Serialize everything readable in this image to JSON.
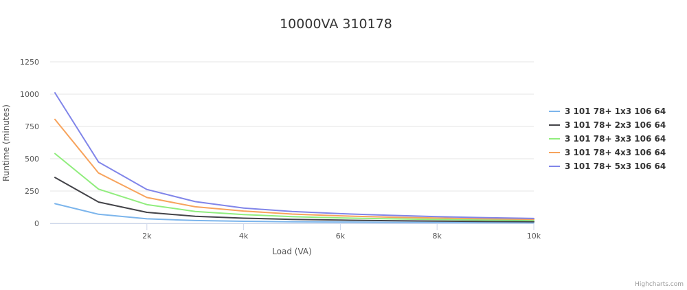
{
  "chart_data": {
    "type": "line",
    "title": "10000VA 310178",
    "xlabel": "Load (VA)",
    "ylabel": "Runtime (minutes)",
    "xlim": [
      0,
      10000
    ],
    "ylim": [
      0,
      1250
    ],
    "x_ticks": [
      2000,
      4000,
      6000,
      8000,
      10000
    ],
    "x_tick_labels": [
      "2k",
      "4k",
      "6k",
      "8k",
      "10k"
    ],
    "y_ticks": [
      0,
      250,
      500,
      750,
      1000,
      1250
    ],
    "y_tick_labels": [
      "0",
      "250",
      "500",
      "750",
      "1000",
      "1250"
    ],
    "grid": "horizontal",
    "legend_position": "right",
    "x": [
      100,
      1000,
      2000,
      3000,
      4000,
      5000,
      6000,
      7000,
      8000,
      9000,
      10000
    ],
    "series": [
      {
        "name": "3 101 78+ 1x3 106 64",
        "color": "#7cb5ec",
        "values": [
          152,
          70,
          35,
          22,
          16,
          12,
          10,
          8,
          7,
          6,
          5
        ]
      },
      {
        "name": "3 101 78+ 2x3 106 64",
        "color": "#434348",
        "values": [
          355,
          165,
          85,
          55,
          40,
          31,
          25,
          21,
          17,
          15,
          13
        ]
      },
      {
        "name": "3 101 78+ 3x3 106 64",
        "color": "#90ed7d",
        "values": [
          540,
          265,
          145,
          92,
          68,
          52,
          42,
          35,
          30,
          26,
          23
        ]
      },
      {
        "name": "3 101 78+ 4x3 106 64",
        "color": "#f7a35c",
        "values": [
          805,
          390,
          200,
          128,
          95,
          72,
          58,
          48,
          41,
          35,
          31
        ]
      },
      {
        "name": "3 101 78+ 5x3 106 64",
        "color": "#8085e9",
        "values": [
          1010,
          475,
          262,
          168,
          118,
          92,
          75,
          62,
          52,
          44,
          38
        ]
      }
    ]
  },
  "credits": "Highcharts.com"
}
